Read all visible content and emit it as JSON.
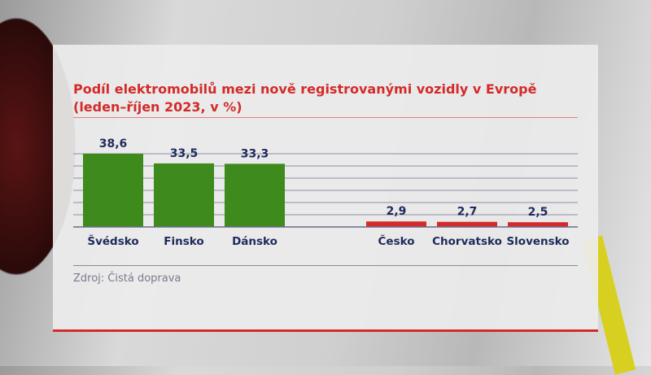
{
  "chart_data": {
    "type": "bar",
    "title": "Podíl elektromobilů mezi nově registrovanými vozidly v Evropě",
    "subtitle": "(leden–říjen 2023, v %)",
    "categories": [
      "Švédsko",
      "Finsko",
      "Dánsko",
      "Česko",
      "Chorvatsko",
      "Slovensko"
    ],
    "values": [
      38.6,
      33.5,
      33.3,
      2.9,
      2.7,
      2.5
    ],
    "value_labels": [
      "38,6",
      "33,5",
      "33,3",
      "2,9",
      "2,7",
      "2,5"
    ],
    "colors": [
      "#3f8a1c",
      "#3f8a1c",
      "#3f8a1c",
      "#d42a2a",
      "#d42a2a",
      "#d42a2a"
    ],
    "grid": true,
    "source": "Zdroj: Čistá doprava"
  },
  "colors": {
    "accent": "#d42a2a",
    "label": "#1f2a5c"
  }
}
